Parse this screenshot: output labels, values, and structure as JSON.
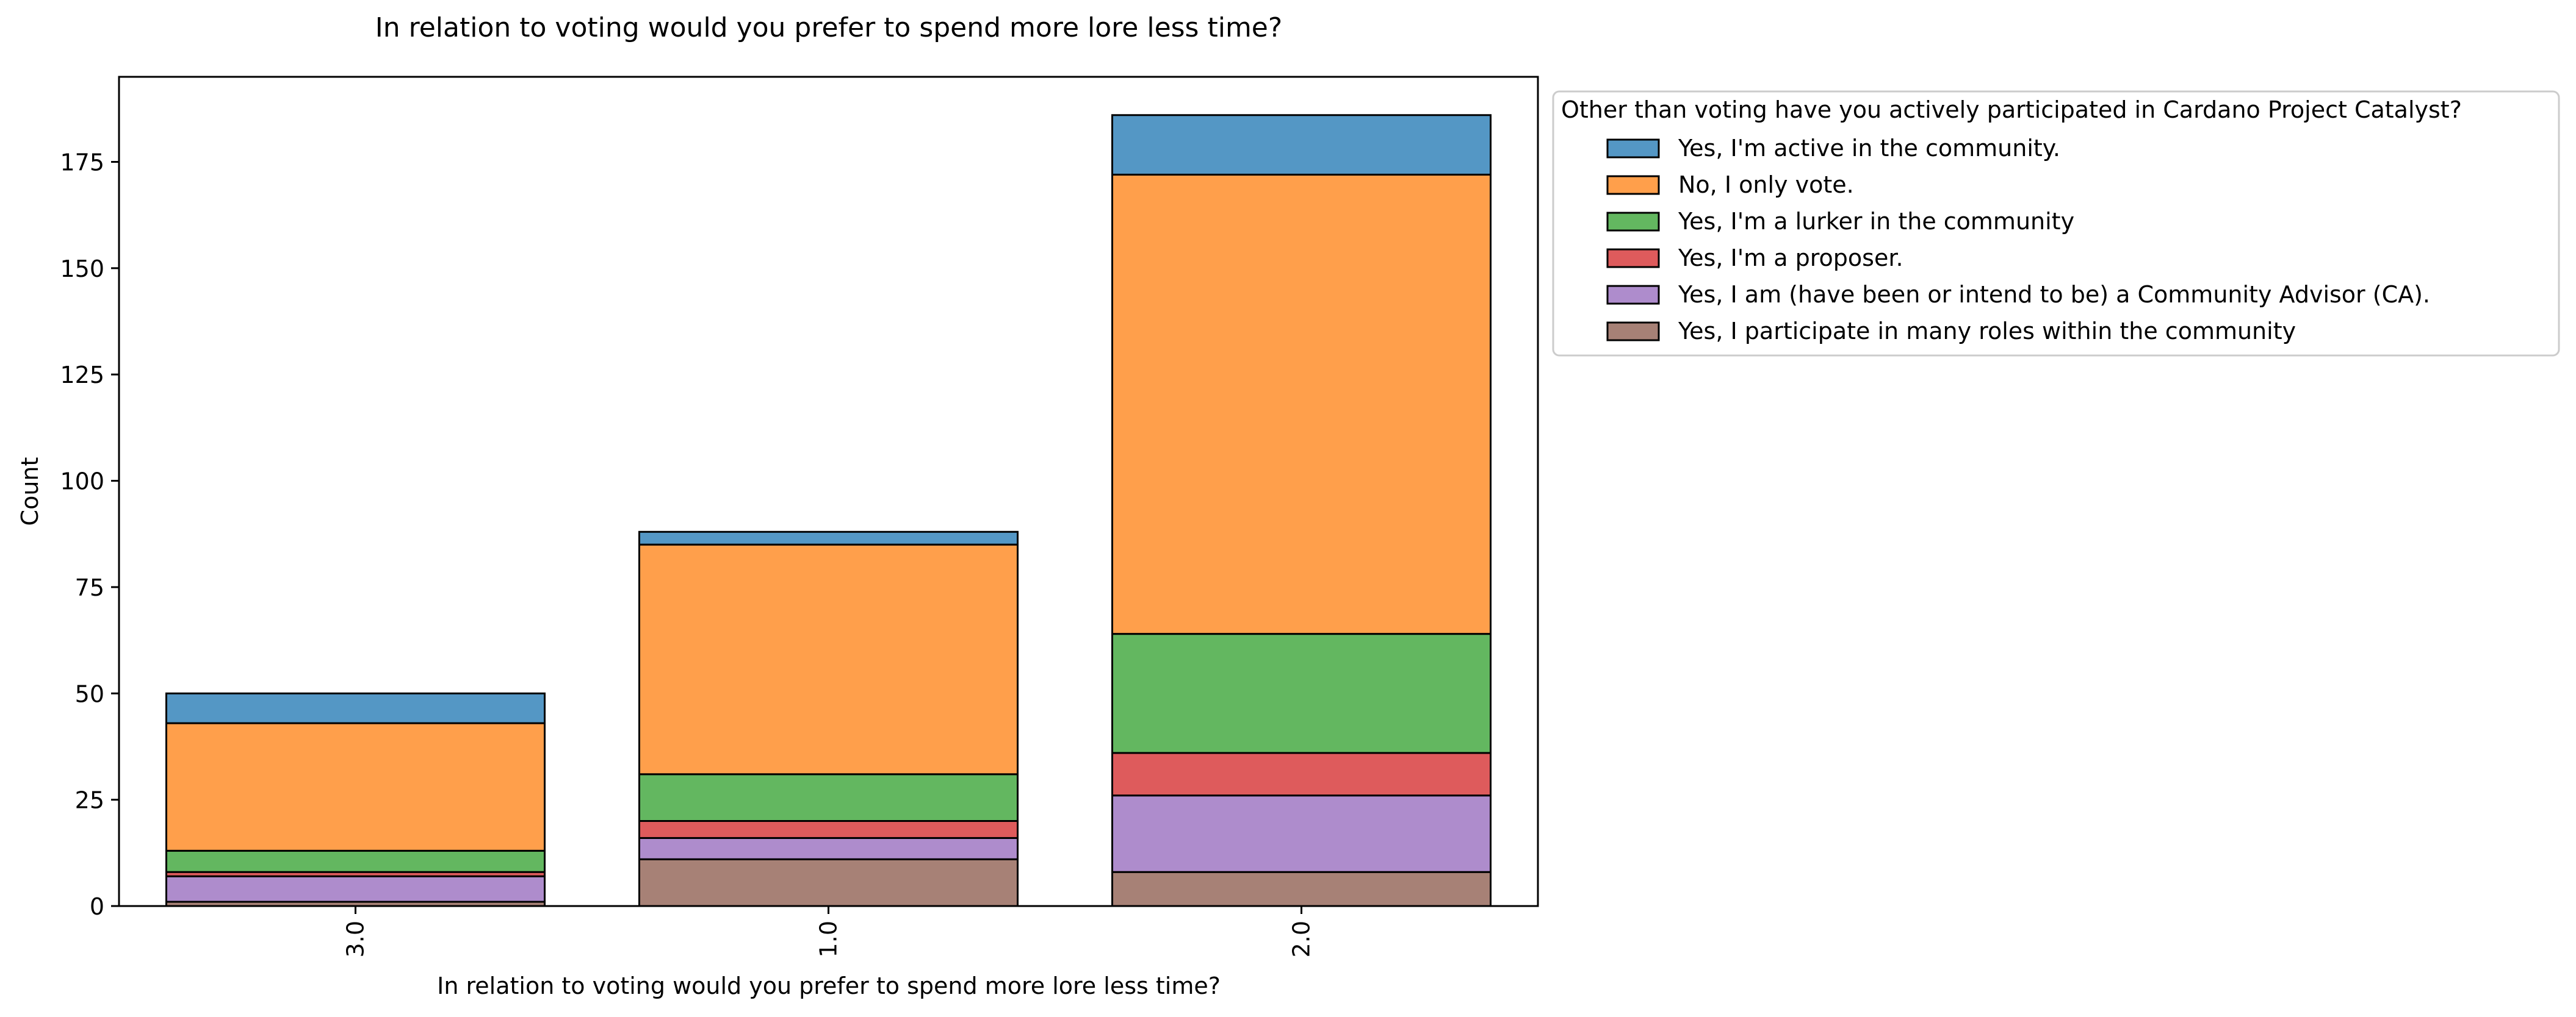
{
  "chart_data": {
    "type": "bar",
    "stacked": true,
    "title": "In relation to voting would you prefer to spend more lore less time?",
    "xlabel": "In relation to voting would you prefer to spend more lore less time?",
    "ylabel": "Count",
    "categories": [
      "3.0",
      "1.0",
      "2.0"
    ],
    "ylim": [
      0,
      195
    ],
    "yticks": [
      0,
      25,
      50,
      75,
      100,
      125,
      150,
      175
    ],
    "ytick_labels": [
      "0",
      "25",
      "50",
      "75",
      "100",
      "125",
      "150",
      "175"
    ],
    "grid": false,
    "legend_placement": "outside upper right",
    "legend_title": "Other than voting have you actively participated in Cardano Project Catalyst?",
    "series": [
      {
        "name": "Yes, I participate in many roles within the community",
        "color": "#a78176",
        "values": [
          1,
          11,
          8
        ]
      },
      {
        "name": "Yes, I am (have been or intend to be) a Community Advisor (CA).",
        "color": "#ae8ccc",
        "values": [
          6,
          5,
          18
        ]
      },
      {
        "name": "Yes, I'm a proposer.",
        "color": "#de5b5c",
        "values": [
          1,
          4,
          10
        ]
      },
      {
        "name": "Yes, I'm a lurker in the community",
        "color": "#63b760",
        "values": [
          5,
          11,
          28
        ]
      },
      {
        "name": "No, I only vote.",
        "color": "#ff9f4b",
        "values": [
          30,
          54,
          108
        ]
      },
      {
        "name": "Yes, I'm active in the community.",
        "color": "#5497c5",
        "values": [
          7,
          3,
          14
        ]
      }
    ],
    "legend_order": [
      5,
      4,
      3,
      2,
      1,
      0
    ]
  }
}
